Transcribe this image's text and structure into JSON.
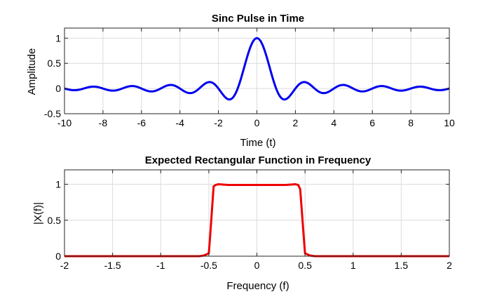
{
  "chart_data": [
    {
      "type": "line",
      "title": "Sinc Pulse in Time",
      "xlabel": "Time (t)",
      "ylabel": "Amplitude",
      "xlim": [
        -10,
        10
      ],
      "ylim": [
        -0.5,
        1.2
      ],
      "xticks": [
        -10,
        -8,
        -6,
        -4,
        -2,
        0,
        2,
        4,
        6,
        8,
        10
      ],
      "xtick_labels": [
        "-10",
        "-8",
        "-6",
        "-4",
        "-2",
        "0",
        "2",
        "4",
        "6",
        "8",
        "10"
      ],
      "yticks": [
        -0.5,
        0,
        0.5,
        1
      ],
      "ytick_labels": [
        "-0.5",
        "0",
        "0.5",
        "1"
      ],
      "grid": true,
      "series": [
        {
          "color": "#0000ee",
          "function": "sinc",
          "x_range": [
            -10,
            10
          ],
          "samples": 801
        }
      ]
    },
    {
      "type": "line",
      "title": "Expected Rectangular Function in Frequency",
      "xlabel": "Frequency (f)",
      "ylabel": "|X(f)|",
      "xlim": [
        -2,
        2
      ],
      "ylim": [
        0,
        1.2
      ],
      "xticks": [
        -2,
        -1.5,
        -1,
        -0.5,
        0,
        0.5,
        1,
        1.5,
        2
      ],
      "xtick_labels": [
        "-2",
        "-1.5",
        "-1",
        "-0.5",
        "0",
        "0.5",
        "1",
        "1.5",
        "2"
      ],
      "yticks": [
        0,
        0.5,
        1
      ],
      "ytick_labels": [
        "0",
        "0.5",
        "1"
      ],
      "grid": true,
      "series": [
        {
          "color": "#ee0000",
          "x": [
            -2,
            -0.6,
            -0.55,
            -0.5,
            -0.485,
            -0.45,
            -0.43,
            -0.4,
            -0.3,
            -0.2,
            -0.1,
            0,
            0.1,
            0.2,
            0.3,
            0.4,
            0.43,
            0.45,
            0.485,
            0.5,
            0.55,
            0.6,
            2
          ],
          "y": [
            0,
            0,
            0.01,
            0.04,
            0.3,
            0.97,
            0.99,
            1.0,
            0.99,
            0.99,
            0.99,
            0.99,
            0.99,
            0.99,
            0.99,
            1.0,
            0.99,
            0.93,
            0.3,
            0.04,
            0.01,
            0,
            0
          ]
        }
      ]
    }
  ]
}
